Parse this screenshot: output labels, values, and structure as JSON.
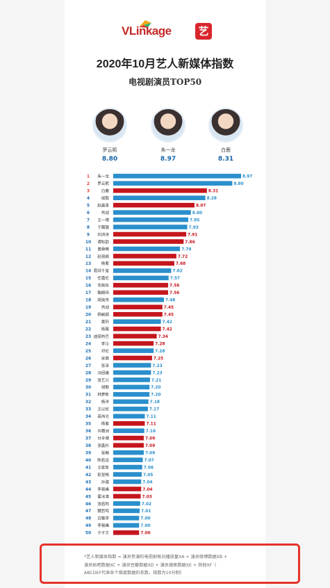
{
  "logo": {
    "text": "VLinkage",
    "badge": "艺"
  },
  "title": "2020年10月艺人新媒体指数",
  "subtitle": "电视剧演员TOP50",
  "top3": [
    {
      "name": "罗云熙",
      "score": "8.80"
    },
    {
      "name": "朱一龙",
      "score": "8.97"
    },
    {
      "name": "白鹿",
      "score": "8.31"
    }
  ],
  "colors": {
    "blue": "#2a8fcc",
    "red": "#c5161d",
    "rank_red": "#e53935",
    "rank_blue": "#1e6fb5"
  },
  "chart_data": {
    "type": "bar",
    "title": "电视剧演员TOP50",
    "categories": [
      "朱一龙",
      "罗云熙",
      "白鹿",
      "成毅",
      "赵露思",
      "肖战",
      "王一博",
      "于朦胧",
      "刘诗诗",
      "谭松韵",
      "曾舜晞",
      "赵丽颖",
      "杨紫",
      "易烊千玺",
      "任嘉伦",
      "毛晓彤",
      "鞠婧祎",
      "胡良伟",
      "肖战",
      "杨颖超",
      "黄轩",
      "杨幂",
      "迪丽热巴",
      "李沁",
      "邓伦",
      "宋茜",
      "张泽",
      "冯绍峰",
      "张艺兴",
      "胡歌",
      "林更新",
      "杨洋",
      "王以纶",
      "高伟光",
      "杨紫",
      "许魏洲",
      "付辛博",
      "张鑫杉",
      "张翰",
      "陈若运",
      "王俊凯",
      "彭昱畅",
      "孙骁",
      "李易峰",
      "霍冰清",
      "张若昀",
      "魏哲鸣",
      "白敬亭",
      "李易峰",
      "于子文"
    ],
    "values": [
      8.97,
      8.8,
      8.31,
      8.28,
      8.07,
      8.0,
      7.95,
      7.93,
      7.91,
      7.86,
      7.79,
      7.72,
      7.68,
      7.62,
      7.57,
      7.56,
      7.56,
      7.48,
      7.45,
      7.45,
      7.42,
      7.42,
      7.34,
      7.28,
      7.28,
      7.25,
      7.23,
      7.23,
      7.21,
      7.2,
      7.2,
      7.18,
      7.17,
      7.11,
      7.11,
      7.1,
      7.09,
      7.09,
      7.09,
      7.07,
      7.06,
      7.05,
      7.04,
      7.04,
      7.03,
      7.02,
      7.01,
      7.0,
      7.0,
      7.0
    ],
    "value_labels": [
      "8.97",
      "8.80",
      "8.31",
      "8.28",
      "8.07",
      "8.00",
      "7.95",
      "7.93",
      "7.91",
      "7.86",
      "7.79",
      "7.72",
      "7.68",
      "7.62",
      "7.57",
      "7.56",
      "7.56",
      "7.48",
      "7.45",
      "7.45",
      "7.42",
      "7.42",
      "7.34",
      "7.28",
      "7.28",
      "7.25",
      "7.23",
      "7.23",
      "7.21",
      "7.20",
      "7.20",
      "7.18",
      "7.17",
      "7.11",
      "7.11",
      "7.10",
      "7.09",
      "7.09",
      "7.09",
      "7.07",
      "7.06",
      "7.05",
      "7.04",
      "7.04",
      "7.03",
      "7.02",
      "7.01",
      "7.00",
      "7.00",
      "7.00"
    ],
    "bar_colors": [
      "blue",
      "blue",
      "red",
      "blue",
      "red",
      "blue",
      "blue",
      "blue",
      "red",
      "red",
      "blue",
      "red",
      "red",
      "blue",
      "blue",
      "red",
      "red",
      "blue",
      "red",
      "red",
      "blue",
      "red",
      "red",
      "red",
      "blue",
      "red",
      "blue",
      "blue",
      "blue",
      "blue",
      "blue",
      "blue",
      "blue",
      "blue",
      "red",
      "blue",
      "red",
      "red",
      "blue",
      "blue",
      "blue",
      "blue",
      "blue",
      "red",
      "red",
      "blue",
      "blue",
      "blue",
      "blue",
      "red"
    ],
    "ranks": [
      "1",
      "2",
      "3",
      "4",
      "5",
      "6",
      "7",
      "8",
      "9",
      "10",
      "11",
      "12",
      "13",
      "14",
      "15",
      "16",
      "17",
      "18",
      "19",
      "20",
      "21",
      "22",
      "23",
      "24",
      "25",
      "26",
      "27",
      "28",
      "29",
      "30",
      "31",
      "32",
      "33",
      "34",
      "35",
      "36",
      "37",
      "38",
      "39",
      "40",
      "41",
      "42",
      "43",
      "44",
      "45",
      "46",
      "47",
      "48",
      "49",
      "50"
    ],
    "rank_colors": [
      "rank_red",
      "rank_red",
      "rank_red",
      "rank_blue",
      "rank_blue",
      "rank_blue",
      "rank_blue",
      "rank_blue",
      "rank_blue",
      "rank_blue",
      "rank_blue",
      "rank_blue",
      "rank_blue",
      "rank_blue",
      "rank_blue",
      "rank_blue",
      "rank_blue",
      "rank_blue",
      "rank_blue",
      "rank_blue",
      "rank_blue",
      "rank_blue",
      "rank_blue",
      "rank_blue",
      "rank_blue",
      "rank_blue",
      "rank_blue",
      "rank_blue",
      "rank_blue",
      "rank_blue",
      "rank_blue",
      "rank_blue",
      "rank_blue",
      "rank_blue",
      "rank_blue",
      "rank_blue",
      "rank_blue",
      "rank_blue",
      "rank_blue",
      "rank_blue",
      "rank_blue",
      "rank_blue",
      "rank_blue",
      "rank_blue",
      "rank_blue",
      "rank_blue",
      "rank_blue",
      "rank_blue",
      "rank_blue",
      "rank_blue"
    ],
    "xlim": [
      6.5,
      9.0
    ],
    "grid": false,
    "legend": "none"
  },
  "footnote": {
    "line1": "*艺人新媒体指数 = 演员参演的电视剧每日播放量XA + 演员微博数据XB +",
    "line2": "演员贴吧数据XC + 演员豆瓣数据XD + 演员搜索数据XE + 其他XF（",
    "line3": "ABCDEF代表各个维度数据的系数，指数为10分制）"
  }
}
